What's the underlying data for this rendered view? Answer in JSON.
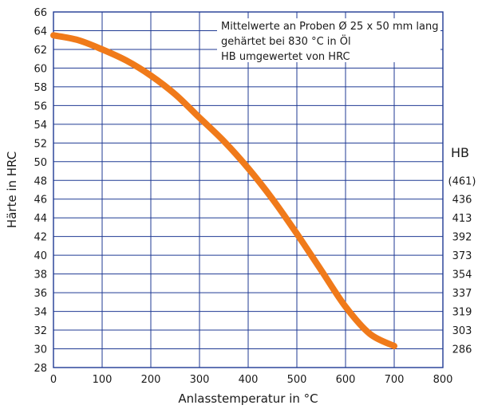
{
  "chart_data": {
    "type": "line",
    "xlabel": "Anlasstemperatur in °C",
    "ylabel": "Härte in HRC",
    "xlim": [
      0,
      800
    ],
    "ylim": [
      28,
      66
    ],
    "x_ticks": [
      "0",
      "100",
      "200",
      "300",
      "400",
      "500",
      "600",
      "700",
      "800"
    ],
    "y_ticks": [
      "28",
      "30",
      "32",
      "34",
      "36",
      "38",
      "40",
      "42",
      "44",
      "46",
      "48",
      "50",
      "52",
      "54",
      "56",
      "58",
      "60",
      "62",
      "64",
      "66"
    ],
    "grid": true,
    "secondary_axis": {
      "title": "HB",
      "labels": [
        {
          "hrc": 48,
          "label": "(461)"
        },
        {
          "hrc": 46,
          "label": "436"
        },
        {
          "hrc": 44,
          "label": "413"
        },
        {
          "hrc": 42,
          "label": "392"
        },
        {
          "hrc": 40,
          "label": "373"
        },
        {
          "hrc": 38,
          "label": "354"
        },
        {
          "hrc": 36,
          "label": "337"
        },
        {
          "hrc": 34,
          "label": "319"
        },
        {
          "hrc": 32,
          "label": "303"
        },
        {
          "hrc": 30,
          "label": "286"
        }
      ]
    },
    "annotation": [
      "Mittelwerte an Proben Ø 25 x 50 mm lang",
      "gehärtet bei 830 °C in Öl",
      "HB umgewertet von HRC"
    ],
    "series": [
      {
        "color": "#f07a1a",
        "points": [
          [
            0,
            63.5
          ],
          [
            50,
            63.0
          ],
          [
            100,
            62.0
          ],
          [
            150,
            60.8
          ],
          [
            200,
            59.2
          ],
          [
            250,
            57.2
          ],
          [
            300,
            54.7
          ],
          [
            350,
            52.2
          ],
          [
            400,
            49.3
          ],
          [
            450,
            46.0
          ],
          [
            500,
            42.3
          ],
          [
            550,
            38.4
          ],
          [
            600,
            34.5
          ],
          [
            650,
            31.6
          ],
          [
            700,
            30.3
          ]
        ]
      }
    ]
  }
}
